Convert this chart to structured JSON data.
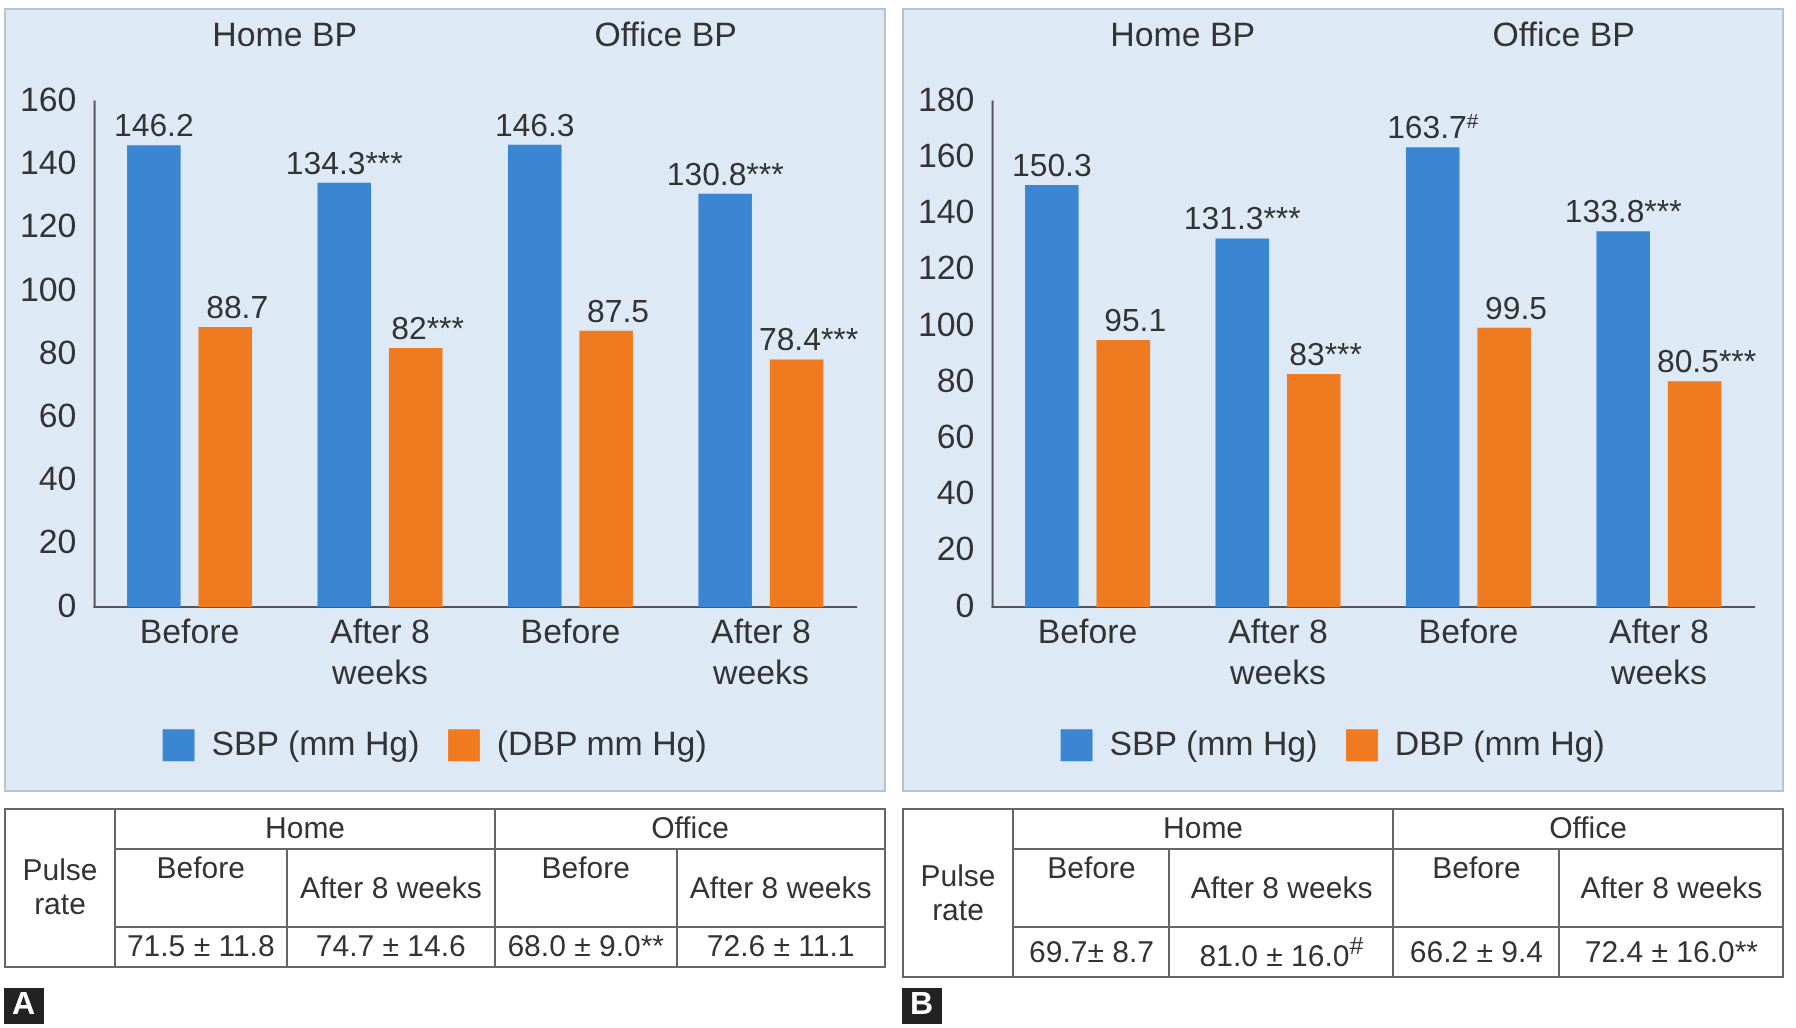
{
  "chart_data": [
    {
      "type": "bar",
      "categories": [
        "Before",
        "After 8 weeks",
        "Before",
        "After 8 weeks"
      ],
      "ylim": [
        0,
        160
      ],
      "yticks": [
        0,
        20,
        40,
        60,
        80,
        100,
        120,
        140,
        160
      ],
      "legend": "bottom",
      "series": [
        {
          "name": "SBP (mm Hg)",
          "color": "#3a86d2",
          "values": [
            146.2,
            134.3,
            146.3,
            130.8
          ],
          "value_labels": [
            "146.2",
            "134.3***",
            "146.3",
            "130.8***"
          ]
        },
        {
          "name": "(DBP mm Hg)",
          "color": "#f07a20",
          "values": [
            88.7,
            82,
            87.5,
            78.4
          ],
          "value_labels": [
            "88.7",
            "82***",
            "87.5",
            "78.4***"
          ]
        }
      ],
      "annotations": [
        "Home BP",
        "Office BP",
        "Pulse rate",
        "Home",
        "Office",
        "Before",
        "After 8 weeks",
        "Before",
        "After 8 weeks",
        "71.5 ± 11.8",
        "74.7 ± 14.6",
        "68.0 ± 9.0**",
        "72.6 ± 11.1",
        "A"
      ]
    },
    {
      "type": "bar",
      "categories": [
        "Before",
        "After 8 weeks",
        "Before",
        "After 8 weeks"
      ],
      "ylim": [
        0,
        180
      ],
      "yticks": [
        0,
        20,
        40,
        60,
        80,
        100,
        120,
        140,
        160,
        180
      ],
      "legend": "bottom",
      "series": [
        {
          "name": "SBP (mm Hg)",
          "color": "#3a86d2",
          "values": [
            150.3,
            131.3,
            163.7,
            133.8
          ],
          "value_labels": [
            "150.3",
            "131.3***",
            "163.7$^{#}$",
            "133.8***"
          ]
        },
        {
          "name": "DBP (mm Hg)",
          "color": "#f07a20",
          "values": [
            95.1,
            83,
            99.5,
            80.5
          ],
          "value_labels": [
            "95.1",
            "83***",
            "99.5",
            "80.5***"
          ]
        }
      ],
      "annotations": [
        "Home BP",
        "Office BP",
        "Pulse rate",
        "Home",
        "Office",
        "Before",
        "After 8 weeks",
        "Before",
        "After 8 weeks",
        "69.7± 8.7",
        "81.0 ± 16.0$^{#}$",
        "66.2 ± 9.4",
        "72.4 ± 16.0**",
        "B"
      ]
    }
  ]
}
